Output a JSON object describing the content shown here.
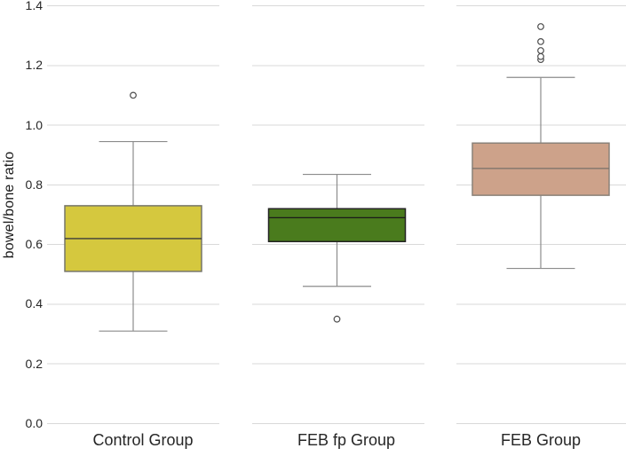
{
  "chart_data": {
    "type": "boxplot",
    "title": "",
    "xlabel": "",
    "ylabel": "bowel/bone ratio",
    "ylim": [
      0.0,
      1.4
    ],
    "yticks": [
      0.0,
      0.2,
      0.4,
      0.6,
      0.8,
      1.0,
      1.2,
      1.4
    ],
    "ytick_labels": [
      "0.0",
      "0.2",
      "0.4",
      "0.6",
      "0.8",
      "1.0",
      "1.2",
      "1.4"
    ],
    "grid": true,
    "grid_color": "#d9d9d9",
    "whisker_color": "#8c8c8c",
    "outlier_color": "#4d4d4d",
    "categories": [
      "Control Group",
      "FEB fp Group",
      "FEB Group"
    ],
    "series": [
      {
        "name": "Control Group",
        "whisker_low": 0.31,
        "q1": 0.51,
        "median": 0.62,
        "q3": 0.73,
        "whisker_high": 0.945,
        "outliers": [
          1.1
        ],
        "fill": "#d5c83e",
        "stroke": "#75756a",
        "median_color": "#3c3c3c"
      },
      {
        "name": "FEB fp Group",
        "whisker_low": 0.46,
        "q1": 0.61,
        "median": 0.69,
        "q3": 0.72,
        "whisker_high": 0.835,
        "outliers": [
          0.35
        ],
        "fill": "#4a7b1d",
        "stroke": "#232323",
        "median_color": "#1a1a1a"
      },
      {
        "name": "FEB Group",
        "whisker_low": 0.52,
        "q1": 0.765,
        "median": 0.855,
        "q3": 0.94,
        "whisker_high": 1.16,
        "outliers": [
          1.22,
          1.23,
          1.25,
          1.28,
          1.33
        ],
        "fill": "#cda28a",
        "stroke": "#8a8178",
        "median_color": "#787069"
      }
    ]
  }
}
